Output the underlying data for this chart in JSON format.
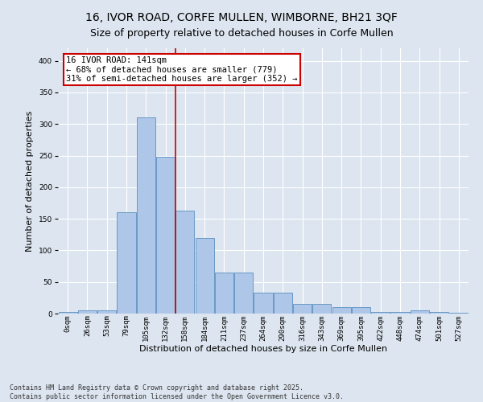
{
  "title_line1": "16, IVOR ROAD, CORFE MULLEN, WIMBORNE, BH21 3QF",
  "title_line2": "Size of property relative to detached houses in Corfe Mullen",
  "xlabel": "Distribution of detached houses by size in Corfe Mullen",
  "ylabel": "Number of detached properties",
  "categories": [
    "0sqm",
    "26sqm",
    "53sqm",
    "79sqm",
    "105sqm",
    "132sqm",
    "158sqm",
    "184sqm",
    "211sqm",
    "237sqm",
    "264sqm",
    "290sqm",
    "316sqm",
    "343sqm",
    "369sqm",
    "395sqm",
    "422sqm",
    "448sqm",
    "474sqm",
    "501sqm",
    "527sqm"
  ],
  "values": [
    2,
    5,
    5,
    160,
    310,
    248,
    163,
    120,
    65,
    65,
    33,
    33,
    15,
    15,
    10,
    10,
    3,
    3,
    5,
    3,
    1
  ],
  "bar_color": "#aec6e8",
  "bar_edge_color": "#5a8fc2",
  "annotation_text_line1": "16 IVOR ROAD: 141sqm",
  "annotation_text_line2": "← 68% of detached houses are smaller (779)",
  "annotation_text_line3": "31% of semi-detached houses are larger (352) →",
  "annotation_box_color": "#ffffff",
  "annotation_box_edge_color": "#cc0000",
  "vline_color": "#cc0000",
  "vline_x": 5.5,
  "ylim": [
    0,
    420
  ],
  "yticks": [
    0,
    50,
    100,
    150,
    200,
    250,
    300,
    350,
    400
  ],
  "footer_line1": "Contains HM Land Registry data © Crown copyright and database right 2025.",
  "footer_line2": "Contains public sector information licensed under the Open Government Licence v3.0.",
  "bg_color": "#dde6f0",
  "plot_bg_color": "#dde6f0",
  "title_fontsize": 10,
  "axis_label_fontsize": 8,
  "tick_label_fontsize": 6.5,
  "footer_fontsize": 6,
  "annotation_fontsize": 7.5
}
